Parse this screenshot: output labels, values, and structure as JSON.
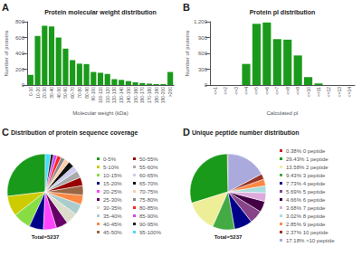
{
  "chart_data": [
    {
      "type": "bar",
      "panel_label": "A",
      "title": "Protein molecular weight distribution",
      "xlabel": "Molecular weight (kDa)",
      "ylabel": "Number of proteins",
      "categories": [
        "0-10",
        "10-20",
        "20-30",
        "30-40",
        "40-50",
        "50-60",
        "60-70",
        "70-80",
        "80-90",
        "90-100",
        "100-110",
        "110-120",
        "120-130",
        "130-140",
        "140-150",
        "150-160",
        "160-170",
        "170-180",
        "180-190",
        "190-200",
        ">200"
      ],
      "values": [
        130,
        620,
        750,
        740,
        600,
        460,
        315,
        270,
        265,
        165,
        155,
        140,
        75,
        65,
        50,
        35,
        25,
        18,
        12,
        12,
        165
      ],
      "color": "#1a9a1a",
      "ylim": [
        0,
        800
      ],
      "yticks": [
        0,
        200,
        400,
        600,
        800
      ],
      "grid": false
    },
    {
      "type": "bar",
      "panel_label": "B",
      "title": "Protein pI distribution",
      "xlabel": "Calculated pI",
      "ylabel": "Number of proteins",
      "categories": [
        "<=1",
        "<=2",
        "<=3",
        "<=4",
        "<=5",
        "<=6",
        "<=7",
        "<=8",
        "<=9",
        "<=10",
        "<=11",
        "<=12",
        "<=13",
        "<=14"
      ],
      "values": [
        0,
        0,
        0,
        400,
        1160,
        1185,
        870,
        860,
        560,
        150,
        30,
        0,
        0,
        0
      ],
      "color": "#1a9a1a",
      "ylim": [
        0,
        1200
      ],
      "yticks": [
        0,
        300,
        600,
        900,
        1200
      ],
      "grid": false
    },
    {
      "type": "pie",
      "panel_label": "C",
      "title": "Distribution of protein sequence coverage",
      "annotations": [
        "Total=5237"
      ],
      "categories": [
        "0-5%",
        "5-10%",
        "10-15%",
        "15-20%",
        "20-25%",
        "25-30%",
        "30-35%",
        "35-40%",
        "40-45%",
        "45-50%",
        "50-55%",
        "55-60%",
        "60-65%",
        "65-70%",
        "70-75%",
        "75-80%",
        "80-85%",
        "85-90%",
        "90-95%",
        "95-100%"
      ],
      "values": [
        26.5,
        8.5,
        7.5,
        6.0,
        5.5,
        5.0,
        5.0,
        4.5,
        4.0,
        4.0,
        3.5,
        3.0,
        2.5,
        2.5,
        2.0,
        1.8,
        1.7,
        1.5,
        1.3,
        2.2
      ],
      "colors": [
        "#1a9a1a",
        "#cccc00",
        "#88dd44",
        "#000088",
        "#ff44ff",
        "#660066",
        "#ddddcc",
        "#aacccc",
        "#ff8844",
        "#996644",
        "#990000",
        "#aaaaaa",
        "#ccccee",
        "#111111",
        "#ffccaa",
        "#888888",
        "#ff2222",
        "#cc44ff",
        "#222222",
        "#44ddff"
      ],
      "legend": "right"
    },
    {
      "type": "pie",
      "panel_label": "D",
      "title": "Unique peptide number distribution",
      "annotations": [
        "Total=5237"
      ],
      "categories": [
        "0.38% 0 peptide",
        "29.43% 1 peptide",
        "13.58% 2 peptide",
        "9.43% 3 peptide",
        "7.73% 4 peptide",
        "5.69% 5 peptide",
        "4.66% 6 peptide",
        "3.68% 7 peptide",
        "3.02% 8 peptide",
        "2.85% 9 peptide",
        "2.37% 10 peptide",
        "17.18% >10 peptide"
      ],
      "values": [
        0.38,
        29.43,
        13.58,
        9.43,
        7.73,
        5.69,
        4.66,
        3.68,
        3.02,
        2.85,
        2.37,
        17.18
      ],
      "colors": [
        "#cc2222",
        "#1a9a1a",
        "#eeee99",
        "#44aa44",
        "#000088",
        "#884488",
        "#440044",
        "#ddaadd",
        "#aadddd",
        "#ff8844",
        "#993322",
        "#aaaadd"
      ],
      "legend": "right"
    }
  ]
}
